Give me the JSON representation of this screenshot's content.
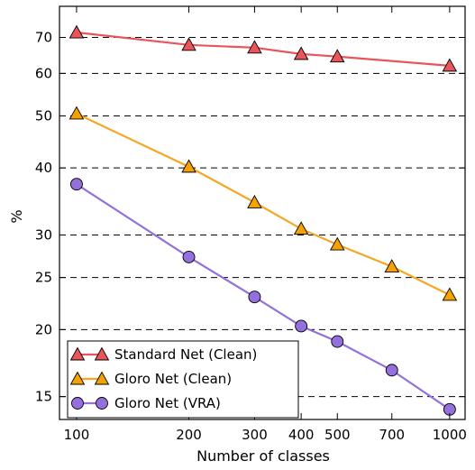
{
  "chart_data": {
    "type": "line",
    "xlabel": "Number of classes",
    "ylabel": "%",
    "x_scale": "log",
    "y_scale": "log",
    "xlim": [
      90,
      1100
    ],
    "ylim": [
      13.6,
      80
    ],
    "x_ticks": [
      100,
      200,
      300,
      400,
      500,
      700,
      1000
    ],
    "x_tick_labels": [
      "100",
      "200",
      "300",
      "400",
      "500",
      "700",
      "1000"
    ],
    "y_ticks": [
      15,
      20,
      25,
      30,
      40,
      50,
      60,
      70
    ],
    "y_tick_labels": [
      "15",
      "20",
      "25",
      "30",
      "40",
      "50",
      "60",
      "70"
    ],
    "grid": "horizontal dashed at y ticks",
    "legend_position": "lower-left",
    "series": [
      {
        "name": "Standard Net (Clean)",
        "marker": "triangle",
        "line_color": "#e8555a",
        "marker_color": "#e8555a",
        "x": [
          100,
          200,
          300,
          400,
          500,
          1000
        ],
        "y": [
          71.5,
          67.8,
          67.0,
          65.2,
          64.5,
          62.0
        ]
      },
      {
        "name": "Gloro Net (Clean)",
        "marker": "triangle",
        "line_color": "#f5a623",
        "marker_color": "#f5a200",
        "x": [
          100,
          200,
          300,
          400,
          500,
          700,
          1000
        ],
        "y": [
          50.5,
          40.2,
          34.5,
          30.8,
          28.8,
          26.2,
          23.2
        ]
      },
      {
        "name": "Gloro Net (VRA)",
        "marker": "circle",
        "line_color": "#9370db",
        "marker_color": "#9370db",
        "x": [
          100,
          200,
          300,
          400,
          500,
          700,
          1000
        ],
        "y": [
          37.3,
          27.3,
          23.0,
          20.3,
          19.0,
          16.8,
          14.2
        ]
      }
    ]
  }
}
